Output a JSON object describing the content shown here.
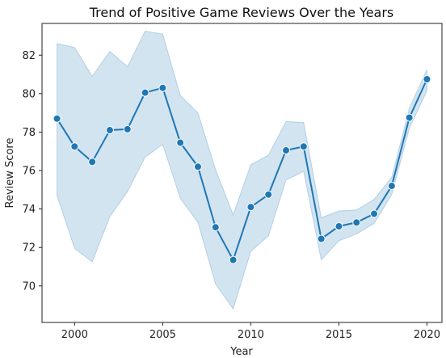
{
  "chart_data": {
    "type": "line",
    "title": "Trend of Positive Game Reviews Over the Years",
    "xlabel": "Year",
    "ylabel": "Review Score",
    "x": [
      1999,
      2000,
      2001,
      2002,
      2003,
      2004,
      2005,
      2006,
      2007,
      2008,
      2009,
      2010,
      2011,
      2012,
      2013,
      2014,
      2015,
      2016,
      2017,
      2018,
      2019,
      2020
    ],
    "series": [
      {
        "values": [
          78.7,
          77.25,
          76.45,
          78.1,
          78.15,
          80.05,
          80.3,
          77.45,
          76.2,
          73.05,
          71.35,
          74.1,
          74.75,
          77.05,
          77.25,
          72.45,
          73.1,
          73.3,
          73.75,
          75.2,
          78.75,
          80.75
        ],
        "ci_upper": [
          82.6,
          82.4,
          80.9,
          82.2,
          81.4,
          83.25,
          83.1,
          79.9,
          79.0,
          76.05,
          73.7,
          76.3,
          76.8,
          78.55,
          78.5,
          73.55,
          73.9,
          73.95,
          74.5,
          75.65,
          79.25,
          81.25
        ],
        "ci_lower": [
          74.7,
          71.95,
          71.25,
          73.6,
          74.9,
          76.7,
          77.35,
          74.55,
          73.3,
          70.1,
          68.8,
          71.8,
          72.6,
          75.5,
          75.95,
          71.35,
          72.35,
          72.7,
          73.25,
          74.75,
          78.2,
          80.15
        ]
      }
    ],
    "xlim": [
      1998.15,
      2020.85
    ],
    "ylim": [
      68.1,
      83.65
    ],
    "xticks": [
      2000,
      2005,
      2010,
      2015,
      2020
    ],
    "yticks": [
      70,
      72,
      74,
      76,
      78,
      80,
      82
    ],
    "grid": false,
    "legend": "none",
    "colors": {
      "line": "#1f77b4",
      "band": "#1f77b4",
      "marker_edge": "#ffffff",
      "axis": "#222222"
    }
  }
}
